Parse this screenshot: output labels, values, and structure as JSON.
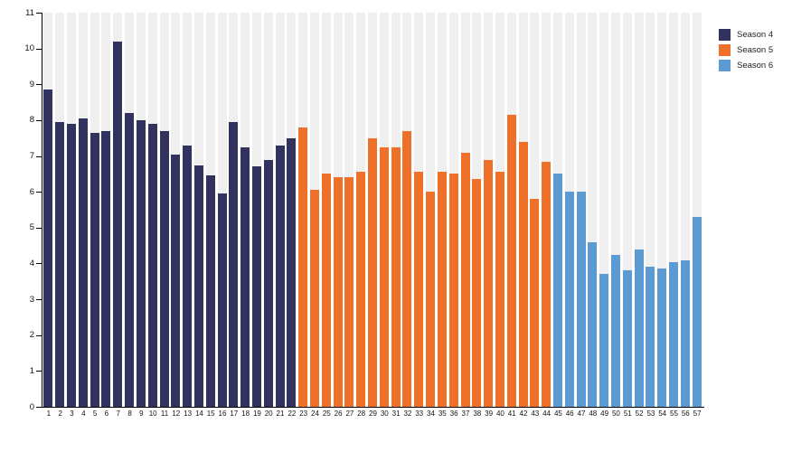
{
  "chart_data": {
    "type": "bar",
    "title": "",
    "xlabel": "",
    "ylabel": "",
    "ylim": [
      0,
      11
    ],
    "ytick_step": 1,
    "ytick_labels": [
      "0",
      "1",
      "2",
      "3",
      "4",
      "5",
      "6",
      "7",
      "8",
      "9",
      "10",
      "11"
    ],
    "x_labels": [
      "1",
      "2",
      "3",
      "4",
      "5",
      "6",
      "7",
      "8",
      "9",
      "10",
      "11",
      "12",
      "13",
      "14",
      "15",
      "16",
      "17",
      "18",
      "19",
      "20",
      "21",
      "22",
      "23",
      "24",
      "25",
      "26",
      "27",
      "28",
      "29",
      "30",
      "31",
      "32",
      "33",
      "34",
      "35",
      "36",
      "37",
      "38",
      "39",
      "40",
      "41",
      "42",
      "43",
      "44",
      "45",
      "46",
      "47",
      "48",
      "49",
      "50",
      "51",
      "52",
      "53",
      "54",
      "55",
      "56",
      "57"
    ],
    "grid": false,
    "background_track_color": "#efefef",
    "axis_color": "#000000",
    "legend_position": "top-right",
    "series": [
      {
        "name": "Season 4",
        "color": "#32325f",
        "start_episode": 1,
        "values": [
          8.85,
          7.95,
          7.9,
          8.05,
          7.65,
          7.7,
          10.2,
          8.2,
          8.0,
          7.9,
          7.7,
          7.05,
          7.3,
          6.75,
          6.45,
          5.95,
          7.95,
          7.25,
          6.7,
          6.9,
          7.3,
          7.5
        ]
      },
      {
        "name": "Season 5",
        "color": "#ef7028",
        "start_episode": 23,
        "values": [
          7.8,
          6.05,
          6.5,
          6.4,
          6.4,
          6.55,
          7.5,
          7.25,
          7.25,
          7.7,
          6.55,
          6.0,
          6.55,
          6.5,
          7.1,
          6.35,
          6.9,
          6.55,
          8.15,
          7.4,
          5.8,
          6.85
        ]
      },
      {
        "name": "Season 6",
        "color": "#5b9ad2",
        "start_episode": 45,
        "values": [
          6.5,
          6.0,
          6.0,
          4.6,
          3.7,
          4.25,
          3.8,
          4.4,
          3.9,
          3.85,
          4.05,
          4.1,
          5.3
        ]
      }
    ]
  }
}
